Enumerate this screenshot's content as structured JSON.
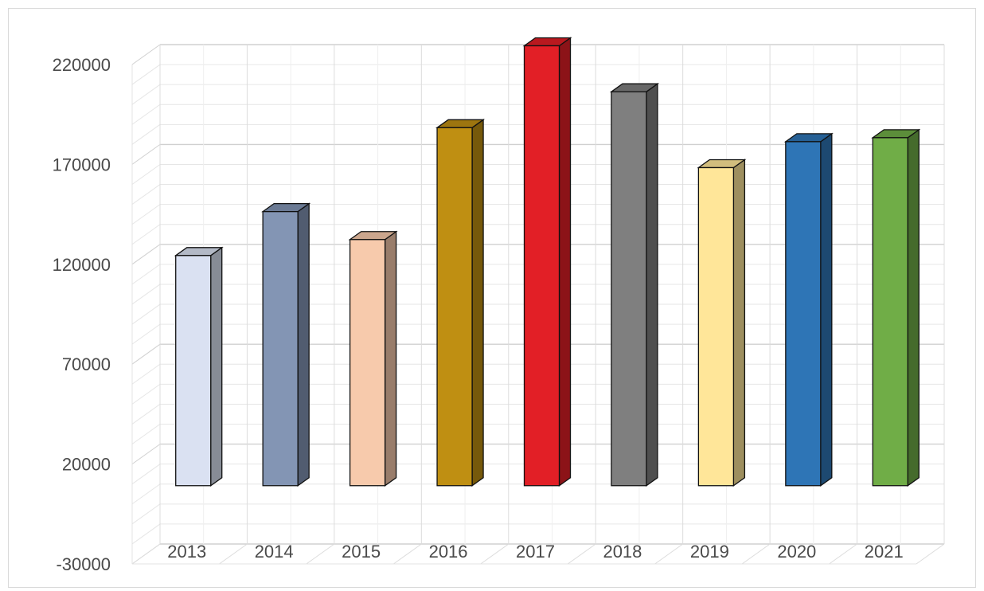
{
  "chart_data": {
    "type": "bar",
    "style": "3d-column",
    "title": "",
    "xlabel": "",
    "ylabel": "",
    "categories": [
      "2013",
      "2014",
      "2015",
      "2016",
      "2017",
      "2018",
      "2019",
      "2020",
      "2021"
    ],
    "values": [
      116000,
      138000,
      124000,
      180000,
      221000,
      198000,
      160000,
      173000,
      175000
    ],
    "bar_colors": [
      "#dae1f2",
      "#8395b4",
      "#f7caac",
      "#bf8f12",
      "#e21f26",
      "#7f7f7f",
      "#ffe699",
      "#2e75b6",
      "#70ad47"
    ],
    "ylim": [
      -30000,
      220000
    ],
    "yticks": [
      220000,
      170000,
      120000,
      70000,
      20000,
      -30000
    ],
    "grid": true,
    "legend": "none"
  }
}
